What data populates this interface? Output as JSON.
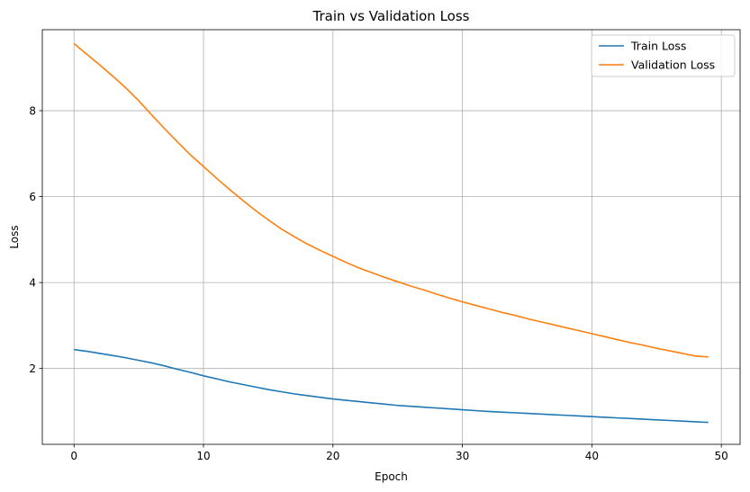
{
  "chart_data": {
    "type": "line",
    "title": "Train vs Validation Loss",
    "xlabel": "Epoch",
    "ylabel": "Loss",
    "xlim": [
      -2.45,
      51.45
    ],
    "ylim": [
      0.235,
      9.885
    ],
    "xticks": [
      0,
      10,
      20,
      30,
      40,
      50
    ],
    "yticks": [
      2,
      4,
      6,
      8
    ],
    "grid": true,
    "legend_position": "top-right",
    "x": [
      0,
      1,
      2,
      3,
      4,
      5,
      6,
      7,
      8,
      9,
      10,
      11,
      12,
      13,
      14,
      15,
      16,
      17,
      18,
      19,
      20,
      21,
      22,
      23,
      24,
      25,
      26,
      27,
      28,
      29,
      30,
      31,
      32,
      33,
      34,
      35,
      36,
      37,
      38,
      39,
      40,
      41,
      42,
      43,
      44,
      45,
      46,
      47,
      48,
      49
    ],
    "series": [
      {
        "name": "Train Loss",
        "color": "#1f77b4",
        "values": [
          2.44,
          2.4,
          2.35,
          2.3,
          2.25,
          2.19,
          2.13,
          2.06,
          1.98,
          1.91,
          1.83,
          1.76,
          1.69,
          1.63,
          1.57,
          1.51,
          1.46,
          1.41,
          1.37,
          1.33,
          1.29,
          1.26,
          1.23,
          1.2,
          1.17,
          1.14,
          1.12,
          1.1,
          1.08,
          1.06,
          1.04,
          1.02,
          1.0,
          0.985,
          0.97,
          0.955,
          0.94,
          0.925,
          0.91,
          0.895,
          0.88,
          0.865,
          0.85,
          0.835,
          0.82,
          0.805,
          0.79,
          0.775,
          0.76,
          0.745
        ]
      },
      {
        "name": "Validation Loss",
        "color": "#ff7f0e",
        "values": [
          9.56,
          9.31,
          9.06,
          8.8,
          8.53,
          8.23,
          7.9,
          7.58,
          7.27,
          6.97,
          6.7,
          6.43,
          6.17,
          5.92,
          5.68,
          5.46,
          5.25,
          5.07,
          4.9,
          4.75,
          4.61,
          4.47,
          4.34,
          4.23,
          4.12,
          4.02,
          3.92,
          3.83,
          3.73,
          3.64,
          3.55,
          3.47,
          3.39,
          3.31,
          3.24,
          3.16,
          3.09,
          3.02,
          2.95,
          2.88,
          2.81,
          2.74,
          2.67,
          2.6,
          2.54,
          2.47,
          2.41,
          2.35,
          2.29,
          2.27
        ]
      }
    ]
  }
}
